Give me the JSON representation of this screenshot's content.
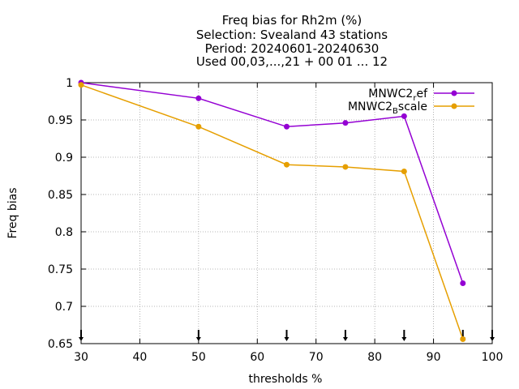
{
  "chart_data": {
    "type": "line",
    "title_lines": [
      "Freq bias  for Rh2m (%)",
      "Selection: Svealand     43 stations",
      "Period: 20240601-20240630",
      "Used 00,03,...,21 + 00 01 ... 12"
    ],
    "xlabel": "thresholds %",
    "ylabel": "Freq bias",
    "xlim": [
      30,
      100
    ],
    "ylim": [
      0.65,
      1.0
    ],
    "xticks": [
      30,
      40,
      50,
      60,
      70,
      80,
      90,
      100
    ],
    "yticks": [
      0.65,
      0.7,
      0.75,
      0.8,
      0.85,
      0.9,
      0.95,
      1.0
    ],
    "ytick_labels": [
      "0.65",
      "0.7",
      "0.75",
      "0.8",
      "0.85",
      "0.9",
      "0.95",
      "1"
    ],
    "grid": true,
    "legend_position": "top-right",
    "x": [
      30,
      50,
      65,
      75,
      85,
      95
    ],
    "threshold_markers": [
      30,
      50,
      65,
      75,
      85,
      95,
      100
    ],
    "series": [
      {
        "name_base": "MNWC2",
        "name_sub": "r",
        "name_rest": "ef",
        "color": "#9400d3",
        "values": [
          1.0,
          0.979,
          0.941,
          0.946,
          0.955,
          0.731
        ]
      },
      {
        "name_base": "MNWC2",
        "name_sub": "B",
        "name_rest": "scale",
        "color": "#e69f00",
        "values": [
          0.997,
          0.941,
          0.89,
          0.887,
          0.881,
          0.656
        ]
      }
    ]
  }
}
